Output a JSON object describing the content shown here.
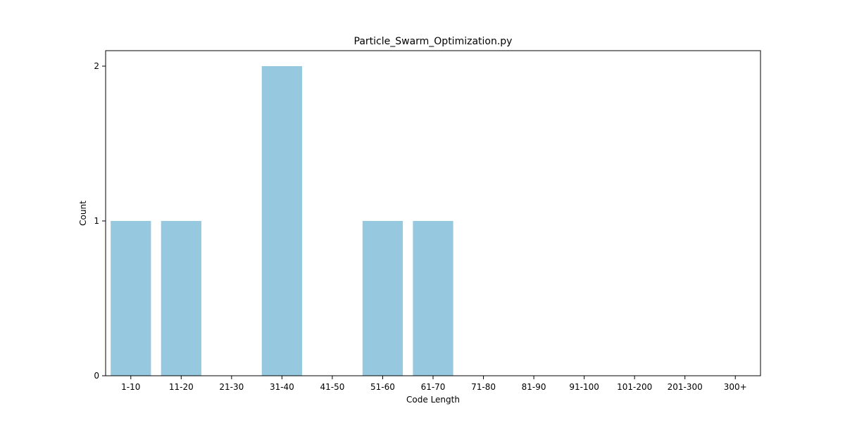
{
  "chart_data": {
    "type": "bar",
    "title": "Particle_Swarm_Optimization.py",
    "xlabel": "Code Length",
    "ylabel": "Count",
    "categories": [
      "1-10",
      "11-20",
      "21-30",
      "31-40",
      "41-50",
      "51-60",
      "61-70",
      "71-80",
      "81-90",
      "91-100",
      "101-200",
      "201-300",
      "300+"
    ],
    "values": [
      1,
      1,
      0,
      2,
      0,
      1,
      1,
      0,
      0,
      0,
      0,
      0,
      0
    ],
    "ylim": [
      0,
      2.1
    ],
    "yticks": [
      0,
      1,
      2
    ],
    "grid": false,
    "bar_color": "#96c9df"
  }
}
